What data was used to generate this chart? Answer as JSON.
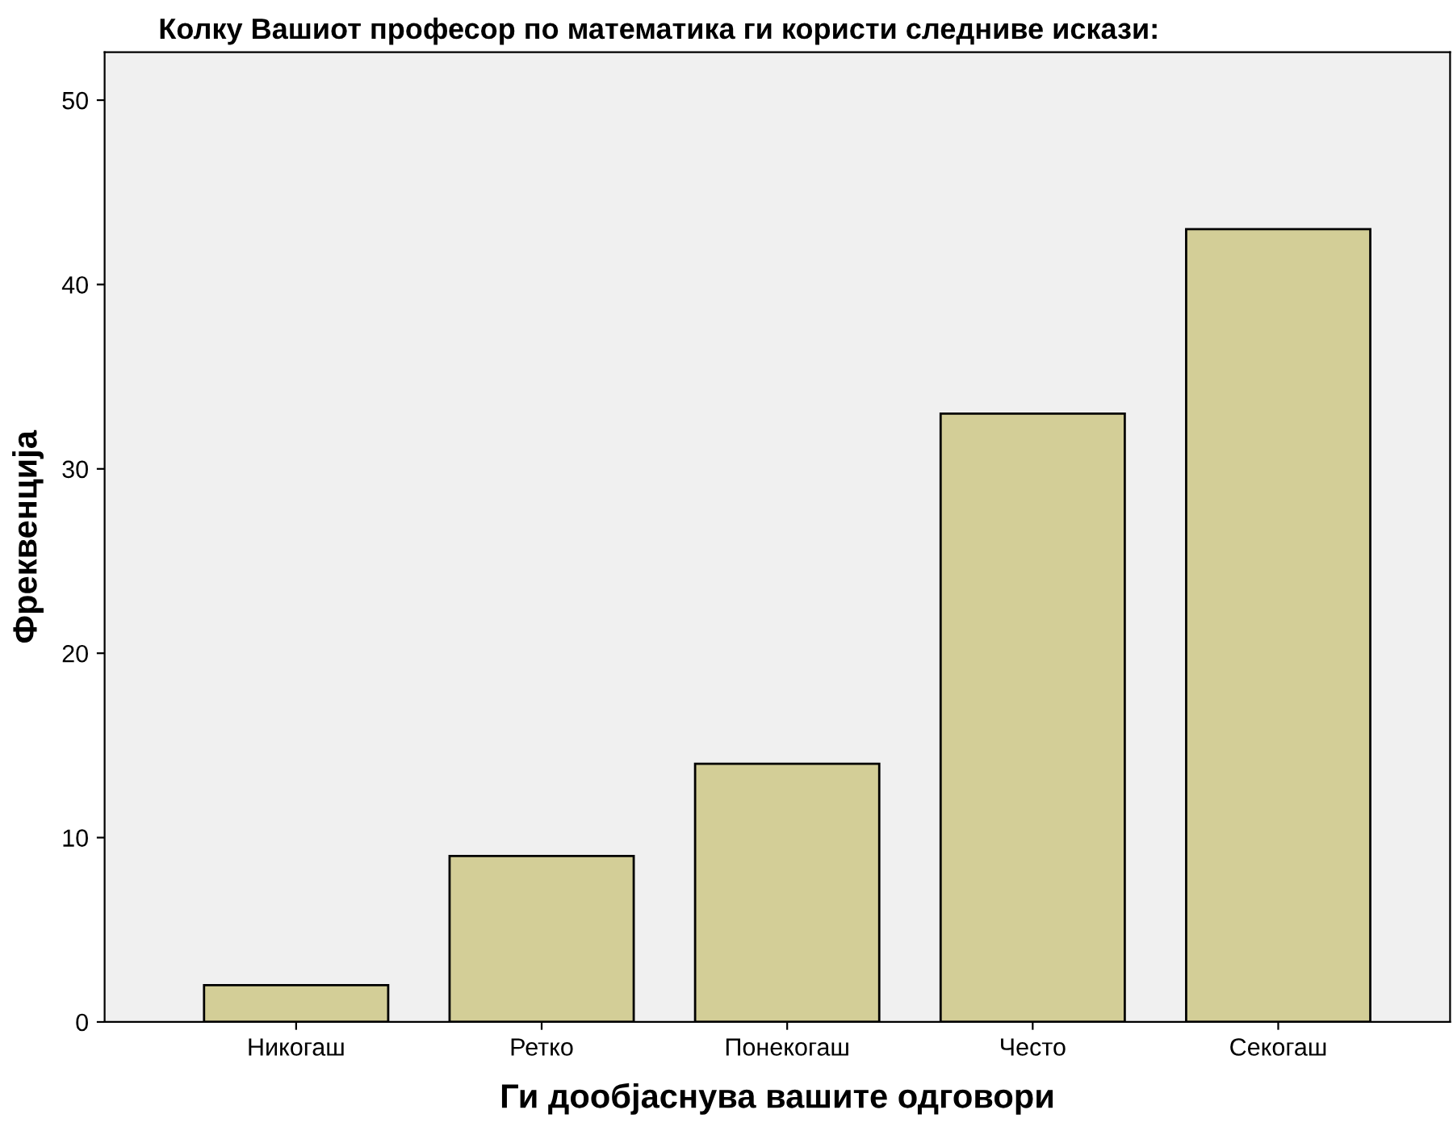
{
  "chart_data": {
    "type": "bar",
    "title": "Колку Вашиот професор по математика ги користи следниве искази:",
    "xlabel": "Ги дообјаснува вашите одговори",
    "ylabel": "Фреквенција",
    "categories": [
      "Никогаш",
      "Ретко",
      "Понекогаш",
      "Често",
      "Секогаш"
    ],
    "values": [
      2,
      9,
      14,
      33,
      43
    ],
    "color": "#d3ce97",
    "ylim": [
      0,
      52.6
    ],
    "yticks": [
      0,
      10,
      20,
      30,
      40,
      50
    ],
    "grid": false,
    "legend": false
  }
}
